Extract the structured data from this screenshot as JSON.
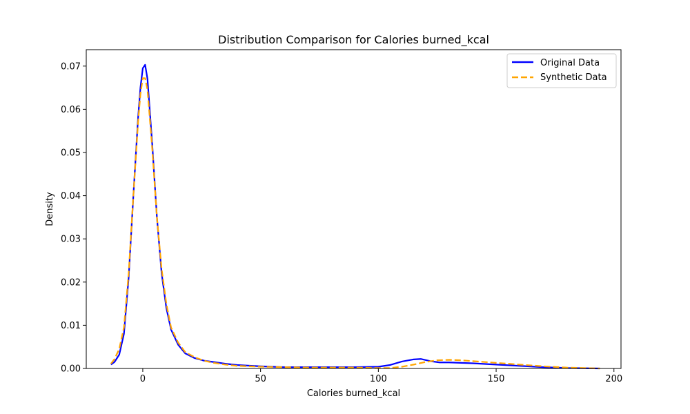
{
  "chart_data": {
    "type": "line",
    "title": "Distribution Comparison for Calories burned_kcal",
    "xlabel": "Calories burned_kcal",
    "ylabel": "Density",
    "xlim": [
      -24,
      203
    ],
    "ylim": [
      0,
      0.0738
    ],
    "x_ticks": [
      0,
      50,
      100,
      150,
      200
    ],
    "y_ticks": [
      0.0,
      0.01,
      0.02,
      0.03,
      0.04,
      0.05,
      0.06,
      0.07
    ],
    "x_tick_labels": [
      "0",
      "50",
      "100",
      "150",
      "200"
    ],
    "y_tick_labels": [
      "0.00",
      "0.01",
      "0.02",
      "0.03",
      "0.04",
      "0.05",
      "0.06",
      "0.07"
    ],
    "grid": false,
    "legend_position": "top-right",
    "series": [
      {
        "name": "Original Data",
        "color": "#0000ff",
        "style": "solid",
        "x": [
          -13.5,
          -12,
          -10,
          -8,
          -6,
          -4,
          -2,
          -1,
          0,
          1,
          2,
          4,
          6,
          8,
          10,
          12,
          15,
          18,
          22,
          26,
          30,
          35,
          40,
          50,
          60,
          70,
          80,
          90,
          100,
          105,
          110,
          115,
          118,
          122,
          126,
          130,
          140,
          150,
          160,
          170,
          180,
          194
        ],
        "y": [
          0.0009,
          0.0015,
          0.0032,
          0.008,
          0.021,
          0.04,
          0.058,
          0.065,
          0.0695,
          0.0703,
          0.067,
          0.052,
          0.035,
          0.022,
          0.014,
          0.009,
          0.0055,
          0.0035,
          0.0024,
          0.0018,
          0.0015,
          0.0011,
          0.0008,
          0.0005,
          0.0003,
          0.0003,
          0.0003,
          0.0003,
          0.0004,
          0.0008,
          0.0016,
          0.0021,
          0.0022,
          0.0017,
          0.0014,
          0.0014,
          0.0012,
          0.0009,
          0.0006,
          0.0003,
          0.0001,
          0.0
        ]
      },
      {
        "name": "Synthetic Data",
        "color": "#ffa500",
        "style": "dashed",
        "x": [
          -13.5,
          -12,
          -10,
          -8,
          -6,
          -4,
          -2,
          -1,
          0,
          1,
          2,
          4,
          6,
          8,
          10,
          12,
          15,
          18,
          22,
          26,
          30,
          35,
          40,
          50,
          60,
          70,
          80,
          90,
          100,
          105,
          110,
          115,
          120,
          125,
          130,
          135,
          140,
          150,
          160,
          170,
          180,
          194
        ],
        "y": [
          0.0011,
          0.0022,
          0.0045,
          0.0095,
          0.022,
          0.04,
          0.057,
          0.0635,
          0.0672,
          0.0672,
          0.0645,
          0.051,
          0.035,
          0.023,
          0.015,
          0.0095,
          0.006,
          0.0038,
          0.0026,
          0.0018,
          0.0013,
          0.0009,
          0.0006,
          0.0004,
          0.0003,
          0.0002,
          0.0002,
          0.0002,
          0.0001,
          0.0001,
          0.0004,
          0.0009,
          0.0015,
          0.0019,
          0.002,
          0.0019,
          0.0017,
          0.0013,
          0.0009,
          0.0005,
          0.0002,
          0.0
        ]
      }
    ]
  }
}
